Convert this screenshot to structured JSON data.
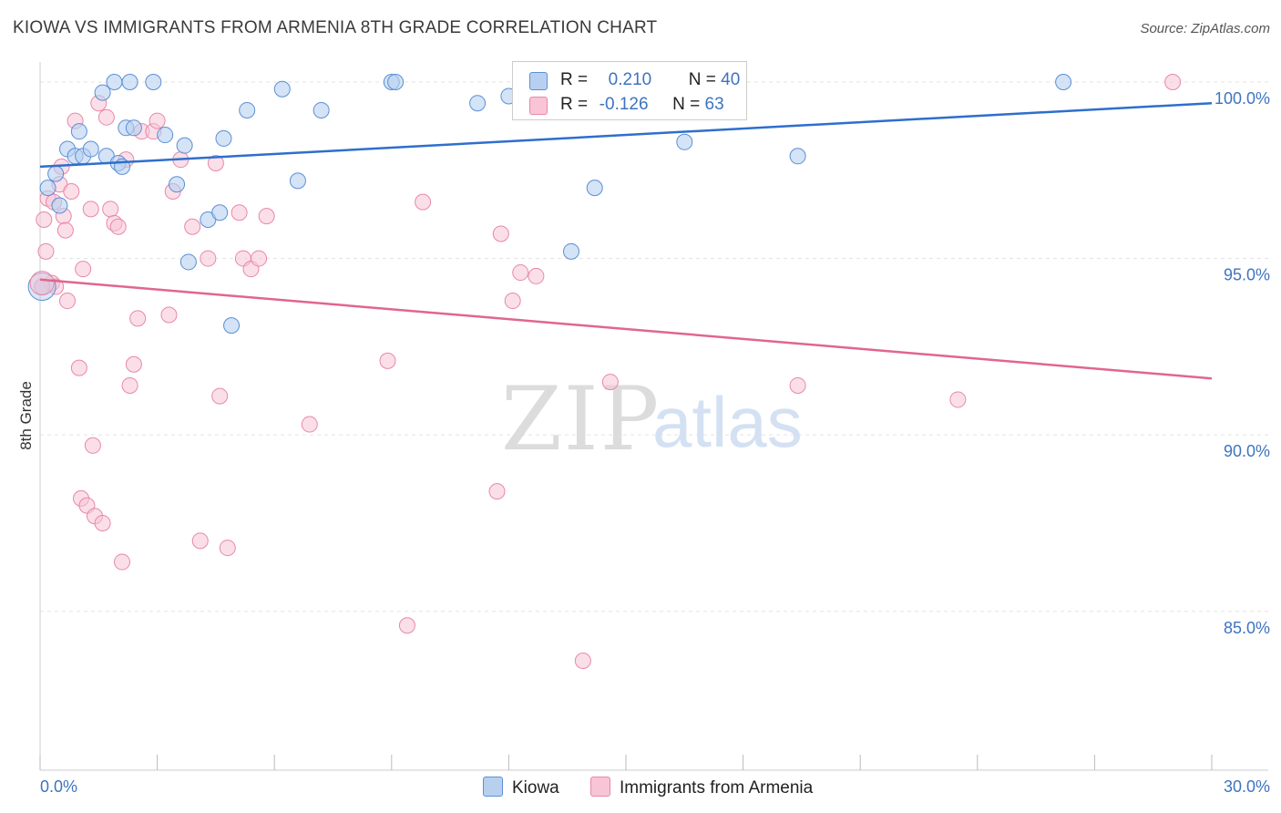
{
  "title": "KIOWA VS IMMIGRANTS FROM ARMENIA 8TH GRADE CORRELATION CHART",
  "source": "Source: ZipAtlas.com",
  "watermark": {
    "zip": "ZIP",
    "atlas": "atlas"
  },
  "colors": {
    "blue_fill": "#b8d0f0",
    "blue_stroke": "#5b8fd6",
    "blue_line": "#2e6fcc",
    "pink_fill": "#f8c4d6",
    "pink_stroke": "#e888a8",
    "pink_line": "#e0668f",
    "tick_text": "#3e74c0",
    "grid": "#e3e3e3"
  },
  "legend": {
    "rows": [
      {
        "r_label": "R =",
        "r_value": "0.210",
        "n_label": "N =",
        "n_value": "40"
      },
      {
        "r_label": "R =",
        "r_value": "-0.126",
        "n_label": "N =",
        "n_value": "63"
      }
    ]
  },
  "bottom_legend": [
    {
      "label": "Kiowa"
    },
    {
      "label": "Immigrants from Armenia"
    }
  ],
  "chart_data": {
    "type": "scatter",
    "xlabel": "",
    "ylabel": "8th Grade",
    "xlim": [
      0,
      30
    ],
    "ylim": [
      80.5,
      100.8
    ],
    "x_tick_labels": [
      "0.0%",
      "30.0%"
    ],
    "y_ticks": [
      85,
      90,
      95,
      100
    ],
    "y_tick_labels": [
      "85.0%",
      "90.0%",
      "95.0%",
      "100.0%"
    ],
    "grid": true,
    "series": [
      {
        "name": "Kiowa",
        "color": "#5b8fd6",
        "trend": {
          "x": [
            0,
            30
          ],
          "y": [
            97.6,
            99.4
          ]
        },
        "points": [
          [
            0.05,
            94.2
          ],
          [
            0.2,
            97.0
          ],
          [
            0.4,
            97.4
          ],
          [
            0.5,
            96.5
          ],
          [
            0.7,
            98.1
          ],
          [
            0.9,
            97.9
          ],
          [
            1.0,
            98.6
          ],
          [
            1.1,
            97.9
          ],
          [
            1.3,
            98.1
          ],
          [
            1.6,
            99.7
          ],
          [
            1.7,
            97.9
          ],
          [
            1.9,
            100.0
          ],
          [
            2.0,
            97.7
          ],
          [
            2.1,
            97.6
          ],
          [
            2.2,
            98.7
          ],
          [
            2.3,
            100.0
          ],
          [
            2.4,
            98.7
          ],
          [
            2.9,
            100.0
          ],
          [
            3.2,
            98.5
          ],
          [
            3.5,
            97.1
          ],
          [
            3.7,
            98.2
          ],
          [
            3.8,
            94.9
          ],
          [
            4.3,
            96.1
          ],
          [
            4.6,
            96.3
          ],
          [
            4.7,
            98.4
          ],
          [
            4.9,
            93.1
          ],
          [
            5.3,
            99.2
          ],
          [
            6.2,
            99.8
          ],
          [
            6.6,
            97.2
          ],
          [
            7.2,
            99.2
          ],
          [
            9.0,
            100.0
          ],
          [
            9.1,
            100.0
          ],
          [
            11.2,
            99.4
          ],
          [
            12.0,
            99.6
          ],
          [
            13.6,
            95.2
          ],
          [
            14.2,
            97.0
          ],
          [
            16.3,
            100.0
          ],
          [
            16.5,
            98.3
          ],
          [
            19.4,
            97.9
          ],
          [
            26.2,
            100.0
          ]
        ]
      },
      {
        "name": "Immigrants from Armenia",
        "color": "#e888a8",
        "trend": {
          "x": [
            0,
            30
          ],
          "y": [
            94.4,
            91.6
          ]
        },
        "points": [
          [
            0.05,
            94.2
          ],
          [
            0.1,
            96.1
          ],
          [
            0.15,
            95.2
          ],
          [
            0.2,
            96.7
          ],
          [
            0.3,
            94.3
          ],
          [
            0.35,
            96.6
          ],
          [
            0.4,
            94.2
          ],
          [
            0.5,
            97.1
          ],
          [
            0.55,
            97.6
          ],
          [
            0.6,
            96.2
          ],
          [
            0.65,
            95.8
          ],
          [
            0.7,
            93.8
          ],
          [
            0.8,
            96.9
          ],
          [
            0.9,
            98.9
          ],
          [
            1.0,
            91.9
          ],
          [
            1.05,
            88.2
          ],
          [
            1.1,
            94.7
          ],
          [
            1.2,
            88.0
          ],
          [
            1.3,
            96.4
          ],
          [
            1.35,
            89.7
          ],
          [
            1.4,
            87.7
          ],
          [
            1.5,
            99.4
          ],
          [
            1.6,
            87.5
          ],
          [
            1.7,
            99.0
          ],
          [
            1.8,
            96.4
          ],
          [
            1.9,
            96.0
          ],
          [
            2.0,
            95.9
          ],
          [
            2.1,
            86.4
          ],
          [
            2.2,
            97.8
          ],
          [
            2.3,
            91.4
          ],
          [
            2.4,
            92.0
          ],
          [
            2.5,
            93.3
          ],
          [
            2.6,
            98.6
          ],
          [
            2.9,
            98.6
          ],
          [
            3.0,
            98.9
          ],
          [
            3.3,
            93.4
          ],
          [
            3.4,
            96.9
          ],
          [
            3.6,
            97.8
          ],
          [
            3.9,
            95.9
          ],
          [
            4.1,
            87.0
          ],
          [
            4.3,
            95.0
          ],
          [
            4.5,
            97.7
          ],
          [
            4.6,
            91.1
          ],
          [
            4.8,
            86.8
          ],
          [
            5.1,
            96.3
          ],
          [
            5.2,
            95.0
          ],
          [
            5.4,
            94.7
          ],
          [
            5.6,
            95.0
          ],
          [
            5.8,
            96.2
          ],
          [
            6.9,
            90.3
          ],
          [
            8.9,
            92.1
          ],
          [
            9.4,
            84.6
          ],
          [
            9.8,
            96.6
          ],
          [
            11.7,
            88.4
          ],
          [
            11.8,
            95.7
          ],
          [
            12.1,
            93.8
          ],
          [
            12.3,
            94.6
          ],
          [
            12.7,
            94.5
          ],
          [
            13.9,
            83.6
          ],
          [
            14.6,
            91.5
          ],
          [
            19.4,
            91.4
          ],
          [
            23.5,
            91.0
          ],
          [
            29.0,
            100.0
          ]
        ]
      }
    ]
  }
}
